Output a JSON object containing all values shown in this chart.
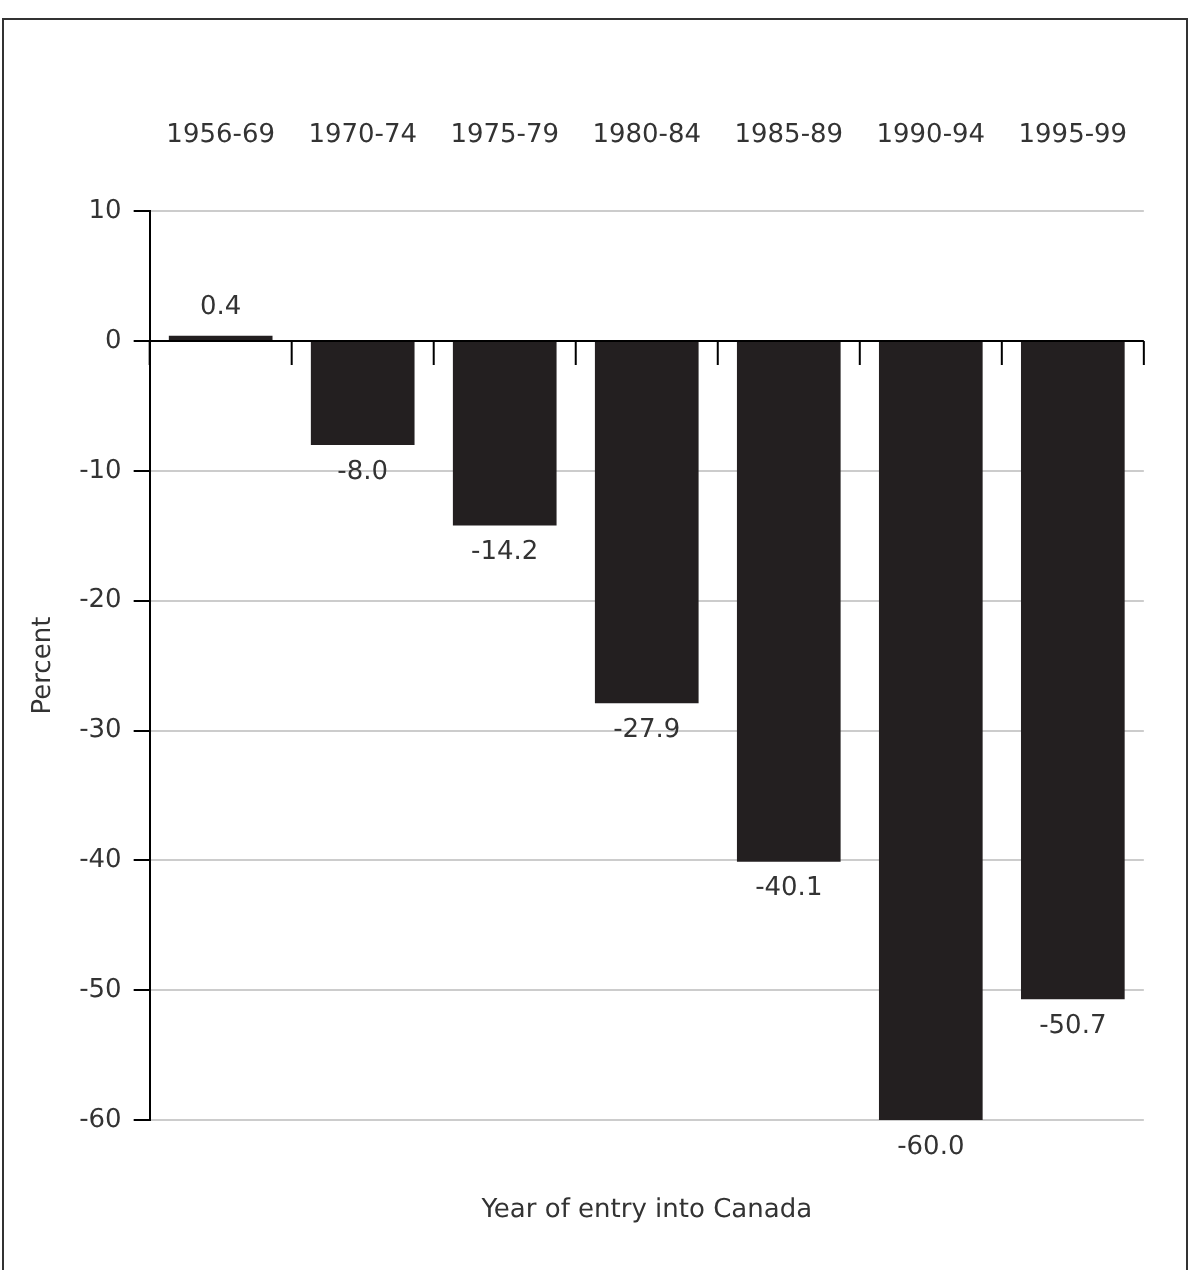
{
  "chart_data": {
    "type": "bar",
    "xlabel": "Year of entry into Canada",
    "ylabel": "Percent",
    "categories": [
      "1956-69",
      "1970-74",
      "1975-79",
      "1980-84",
      "1985-89",
      "1990-94",
      "1995-99"
    ],
    "values": [
      0.4,
      -8.0,
      -14.2,
      -27.9,
      -40.1,
      -60.0,
      -50.7
    ],
    "value_labels": [
      "0.4",
      "-8.0",
      "-14.2",
      "-27.9",
      "-40.1",
      "-60.0",
      "-50.7"
    ],
    "color": "#231f20",
    "ylim": [
      -60,
      10
    ],
    "yticks": [
      -60,
      -50,
      -40,
      -30,
      -20,
      -10,
      0,
      10
    ],
    "grid": "y",
    "legend": false
  }
}
